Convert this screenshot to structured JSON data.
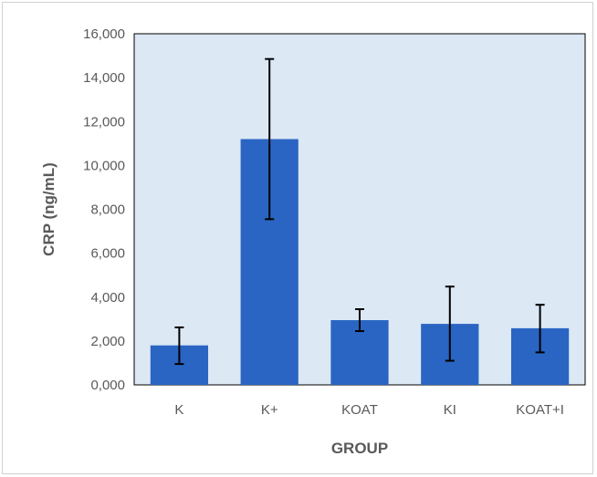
{
  "chart_data": {
    "type": "bar",
    "title": "",
    "xlabel": "GROUP",
    "ylabel": "CRP (ng/mL)",
    "categories": [
      "K",
      "K+",
      "KOAT",
      "KI",
      "KOAT+I"
    ],
    "values": [
      1800,
      11200,
      2950,
      2780,
      2580
    ],
    "error_low": [
      950,
      7550,
      2450,
      1100,
      1480
    ],
    "error_high": [
      2620,
      14850,
      3450,
      4480,
      3650
    ],
    "ylim": [
      0,
      16000
    ],
    "yticks": [
      0,
      2000,
      4000,
      6000,
      8000,
      10000,
      12000,
      14000,
      16000
    ],
    "ytick_labels": [
      "0,000",
      "2,000",
      "4,000",
      "6,000",
      "8,000",
      "10,000",
      "12,000",
      "14,000",
      "16,000"
    ],
    "grid": false,
    "legend": "none",
    "colors": {
      "bar": "#2a65c3",
      "plot_background": "#dde8f5",
      "error_bar": "#000000",
      "axis_text": "#595959"
    }
  }
}
